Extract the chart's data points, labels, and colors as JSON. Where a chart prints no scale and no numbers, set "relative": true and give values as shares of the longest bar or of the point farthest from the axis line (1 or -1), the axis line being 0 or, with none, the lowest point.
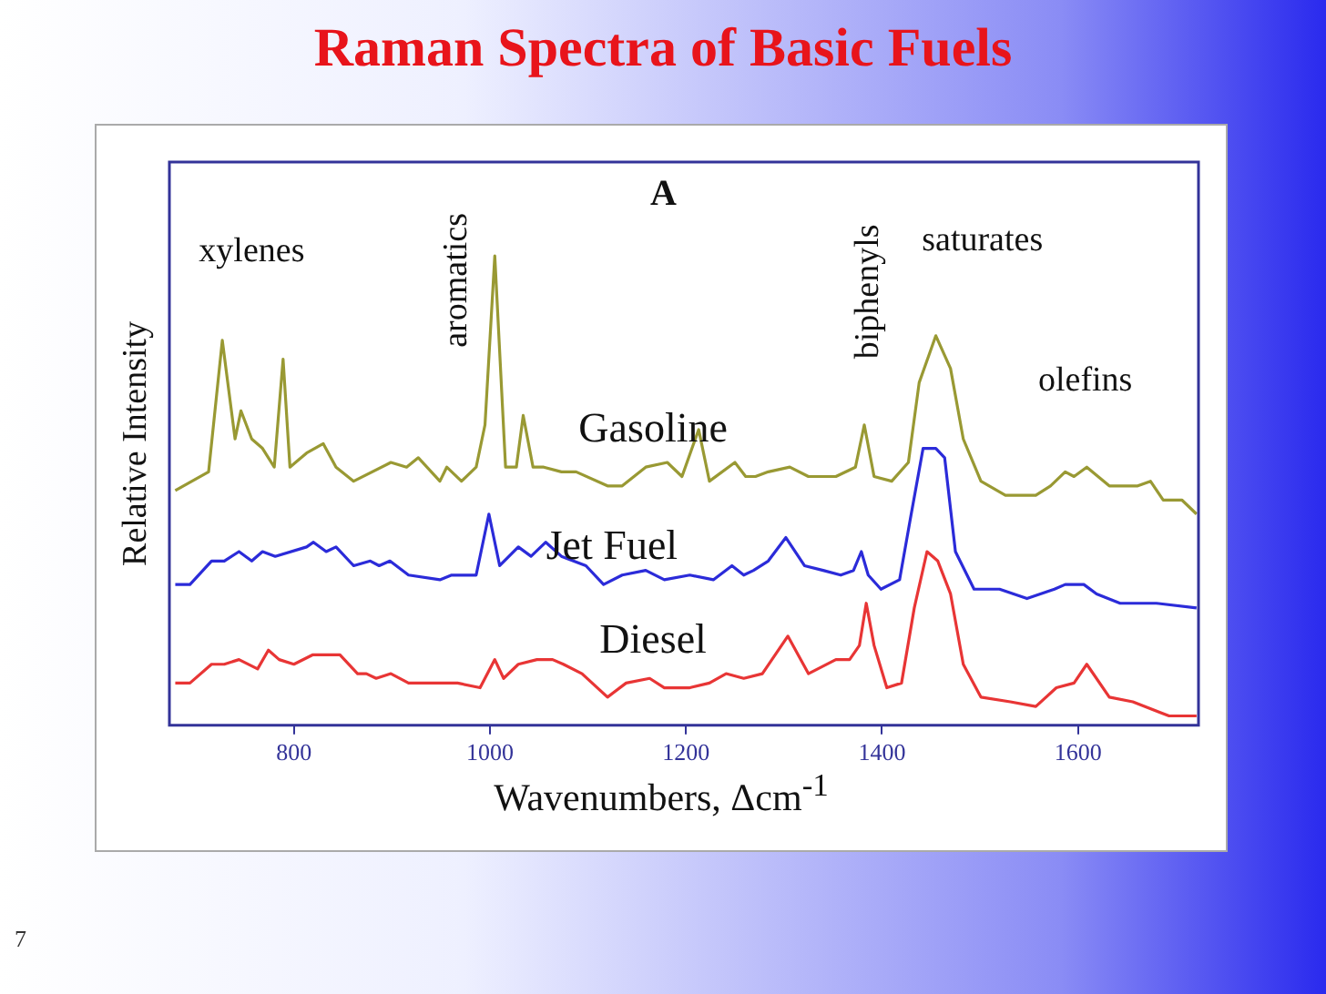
{
  "chart_data": {
    "type": "line",
    "title": "Raman Spectra of Basic Fuels",
    "xlabel": "Wavenumbers, Δcm$^{-1}$",
    "ylabel": "Relative Intensity",
    "relative": true,
    "xlim": [
      673,
      1723
    ],
    "xticks": [
      800,
      1000,
      1200,
      1400,
      1600
    ],
    "marker": "none",
    "line_style": "solid",
    "annotations": [
      "A",
      "xylenes",
      "aromatics",
      "biphenyls",
      "saturates",
      "olefins",
      "7"
    ],
    "series": [
      {
        "name": "Gasoline",
        "color": "#999933",
        "x": [
          679,
          713,
          727,
          740,
          746,
          757,
          768,
          780,
          789,
          796,
          813,
          830,
          843,
          861,
          899,
          915,
          927,
          949,
          956,
          971,
          986,
          995,
          1005,
          1016,
          1027,
          1034,
          1044,
          1055,
          1073,
          1088,
          1120,
          1135,
          1159,
          1181,
          1196,
          1213,
          1224,
          1250,
          1261,
          1271,
          1284,
          1306,
          1325,
          1353,
          1373,
          1382,
          1392,
          1410,
          1427,
          1438,
          1455,
          1470,
          1483,
          1501,
          1526,
          1557,
          1572,
          1587,
          1596,
          1609,
          1632,
          1650,
          1661,
          1674,
          1687,
          1706,
          1721
        ],
        "values": [
          0.5,
          0.54,
          0.82,
          0.61,
          0.67,
          0.61,
          0.59,
          0.55,
          0.78,
          0.55,
          0.58,
          0.6,
          0.55,
          0.52,
          0.56,
          0.55,
          0.57,
          0.52,
          0.55,
          0.52,
          0.55,
          0.64,
          1.0,
          0.55,
          0.55,
          0.66,
          0.55,
          0.55,
          0.54,
          0.54,
          0.51,
          0.51,
          0.55,
          0.56,
          0.53,
          0.63,
          0.52,
          0.56,
          0.53,
          0.53,
          0.54,
          0.55,
          0.53,
          0.53,
          0.55,
          0.64,
          0.53,
          0.52,
          0.56,
          0.73,
          0.83,
          0.76,
          0.61,
          0.52,
          0.49,
          0.49,
          0.51,
          0.54,
          0.53,
          0.55,
          0.51,
          0.51,
          0.51,
          0.52,
          0.48,
          0.48,
          0.45
        ]
      },
      {
        "name": "Jet Fuel",
        "color": "#2b2bd9",
        "x": [
          679,
          694,
          716,
          729,
          744,
          757,
          768,
          781,
          813,
          820,
          833,
          843,
          861,
          878,
          887,
          898,
          917,
          949,
          961,
          986,
          999,
          1010,
          1029,
          1042,
          1057,
          1073,
          1098,
          1116,
          1135,
          1159,
          1178,
          1204,
          1228,
          1247,
          1259,
          1269,
          1284,
          1302,
          1321,
          1340,
          1358,
          1371,
          1379,
          1386,
          1399,
          1418,
          1429,
          1442,
          1455,
          1464,
          1475,
          1494,
          1520,
          1548,
          1576,
          1587,
          1606,
          1619,
          1643,
          1656,
          1680,
          1721
        ],
        "values": [
          0.3,
          0.3,
          0.35,
          0.35,
          0.37,
          0.35,
          0.37,
          0.36,
          0.38,
          0.39,
          0.37,
          0.38,
          0.34,
          0.35,
          0.34,
          0.35,
          0.32,
          0.31,
          0.32,
          0.32,
          0.45,
          0.34,
          0.38,
          0.36,
          0.39,
          0.36,
          0.34,
          0.3,
          0.32,
          0.33,
          0.31,
          0.32,
          0.31,
          0.34,
          0.32,
          0.33,
          0.35,
          0.4,
          0.34,
          0.33,
          0.32,
          0.33,
          0.37,
          0.32,
          0.29,
          0.31,
          0.44,
          0.59,
          0.59,
          0.57,
          0.37,
          0.29,
          0.29,
          0.27,
          0.29,
          0.3,
          0.3,
          0.28,
          0.26,
          0.26,
          0.26,
          0.25
        ]
      },
      {
        "name": "Diesel",
        "color": "#e83535",
        "x": [
          679,
          694,
          716,
          729,
          744,
          763,
          774,
          785,
          800,
          819,
          847,
          865,
          874,
          884,
          899,
          917,
          949,
          967,
          990,
          1005,
          1014,
          1029,
          1048,
          1064,
          1075,
          1094,
          1120,
          1139,
          1163,
          1178,
          1204,
          1224,
          1241,
          1259,
          1278,
          1304,
          1325,
          1353,
          1367,
          1377,
          1384,
          1392,
          1405,
          1420,
          1433,
          1446,
          1457,
          1470,
          1483,
          1501,
          1531,
          1557,
          1578,
          1596,
          1609,
          1632,
          1656,
          1693,
          1721
        ],
        "values": [
          0.09,
          0.09,
          0.13,
          0.13,
          0.14,
          0.12,
          0.16,
          0.14,
          0.13,
          0.15,
          0.15,
          0.11,
          0.11,
          0.1,
          0.11,
          0.09,
          0.09,
          0.09,
          0.08,
          0.14,
          0.1,
          0.13,
          0.14,
          0.14,
          0.13,
          0.11,
          0.06,
          0.09,
          0.1,
          0.08,
          0.08,
          0.09,
          0.11,
          0.1,
          0.11,
          0.19,
          0.11,
          0.14,
          0.14,
          0.17,
          0.26,
          0.17,
          0.08,
          0.09,
          0.25,
          0.37,
          0.35,
          0.28,
          0.13,
          0.06,
          0.05,
          0.04,
          0.08,
          0.09,
          0.13,
          0.06,
          0.05,
          0.02,
          0.02
        ]
      }
    ]
  }
}
